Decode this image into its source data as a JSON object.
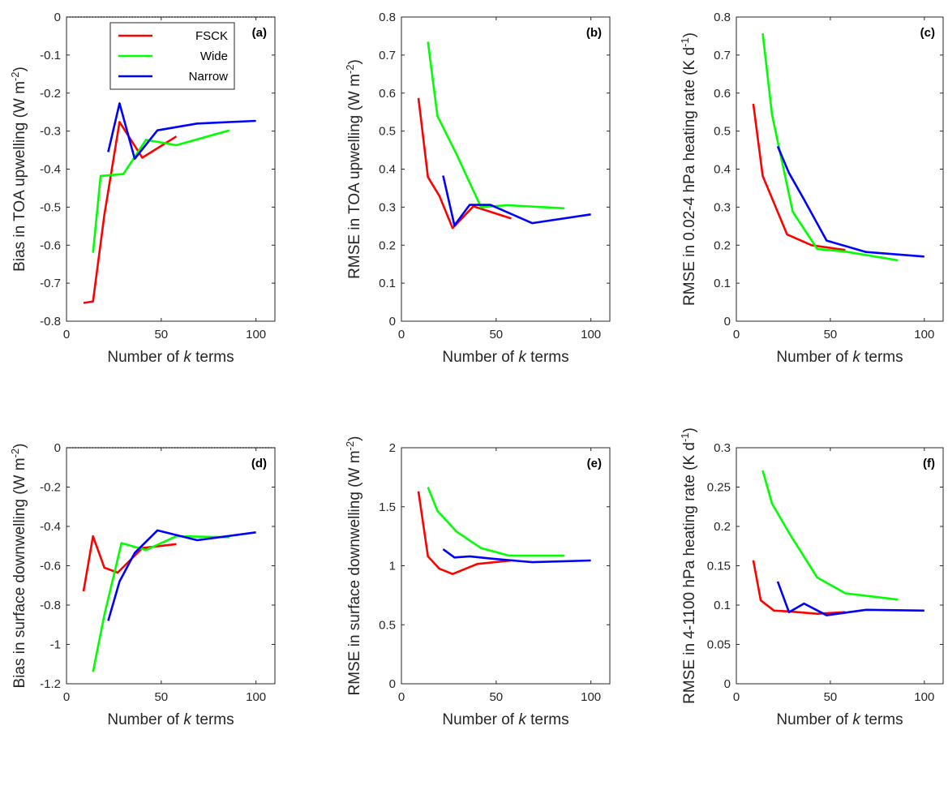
{
  "legend": {
    "entries": [
      {
        "name": "FSCK",
        "color": "#ff0000"
      },
      {
        "name": "Wide",
        "color": "#00ff00"
      },
      {
        "name": "Narrow",
        "color": "#0000ff"
      }
    ],
    "placement": "top-left of panel (a)"
  },
  "chart_data": [
    {
      "type": "line",
      "tag": "(a)",
      "xlabel": "Number of k terms",
      "ylabel_parts": [
        "Bias in TOA upwelling (W m",
        "-2",
        ")"
      ],
      "xlim": [
        0,
        110
      ],
      "ylim": [
        -0.8,
        0
      ],
      "xticks": [
        0,
        50,
        100
      ],
      "yticks": [
        -0.8,
        -0.7,
        -0.6,
        -0.5,
        -0.4,
        -0.3,
        -0.2,
        -0.1,
        0
      ],
      "yticklabels": [
        "-0.8",
        "-0.7",
        "-0.6",
        "-0.5",
        "-0.4",
        "-0.3",
        "-0.2",
        "-0.1",
        "0"
      ],
      "zero_line": true,
      "series": [
        {
          "name": "FSCK",
          "x": [
            9,
            14,
            20,
            28,
            40,
            58
          ],
          "y": [
            -0.752,
            -0.748,
            -0.52,
            -0.276,
            -0.37,
            -0.314
          ]
        },
        {
          "name": "Wide",
          "x": [
            14,
            18,
            30,
            42,
            58,
            86
          ],
          "y": [
            -0.62,
            -0.418,
            -0.413,
            -0.323,
            -0.337,
            -0.298
          ]
        },
        {
          "name": "Narrow",
          "x": [
            22,
            28,
            36,
            48,
            69,
            100
          ],
          "y": [
            -0.355,
            -0.227,
            -0.373,
            -0.298,
            -0.28,
            -0.273
          ]
        }
      ]
    },
    {
      "type": "line",
      "tag": "(b)",
      "xlabel": "Number of k terms",
      "ylabel_parts": [
        "RMSE in TOA upwelling (W m",
        "-2",
        ")"
      ],
      "xlim": [
        0,
        110
      ],
      "ylim": [
        0,
        0.8
      ],
      "xticks": [
        0,
        50,
        100
      ],
      "yticks": [
        0,
        0.1,
        0.2,
        0.3,
        0.4,
        0.5,
        0.6,
        0.7,
        0.8
      ],
      "yticklabels": [
        "0",
        "0.1",
        "0.2",
        "0.3",
        "0.4",
        "0.5",
        "0.6",
        "0.7",
        "0.8"
      ],
      "zero_line": false,
      "series": [
        {
          "name": "FSCK",
          "x": [
            9,
            14,
            20,
            27,
            38,
            58
          ],
          "y": [
            0.587,
            0.379,
            0.33,
            0.245,
            0.302,
            0.27
          ]
        },
        {
          "name": "Wide",
          "x": [
            14,
            19,
            29,
            42,
            56,
            86
          ],
          "y": [
            0.735,
            0.54,
            0.44,
            0.3,
            0.305,
            0.297
          ]
        },
        {
          "name": "Narrow",
          "x": [
            22,
            28,
            36,
            47,
            69,
            100
          ],
          "y": [
            0.383,
            0.252,
            0.306,
            0.306,
            0.258,
            0.281
          ]
        }
      ]
    },
    {
      "type": "line",
      "tag": "(c)",
      "xlabel": "Number of k terms",
      "ylabel_parts": [
        "RMSE in 0.02-4 hPa heating rate (K d",
        "-1",
        ")"
      ],
      "xlim": [
        0,
        110
      ],
      "ylim": [
        0,
        0.8
      ],
      "xticks": [
        0,
        50,
        100
      ],
      "yticks": [
        0,
        0.1,
        0.2,
        0.3,
        0.4,
        0.5,
        0.6,
        0.7,
        0.8
      ],
      "yticklabels": [
        "0",
        "0.1",
        "0.2",
        "0.3",
        "0.4",
        "0.5",
        "0.6",
        "0.7",
        "0.8"
      ],
      "zero_line": false,
      "series": [
        {
          "name": "FSCK",
          "x": [
            9,
            14,
            27,
            40,
            58
          ],
          "y": [
            0.572,
            0.382,
            0.228,
            0.2,
            0.187
          ]
        },
        {
          "name": "Wide",
          "x": [
            14,
            19,
            30,
            43,
            58,
            86
          ],
          "y": [
            0.757,
            0.543,
            0.288,
            0.19,
            0.183,
            0.16
          ]
        },
        {
          "name": "Narrow",
          "x": [
            22,
            28,
            36,
            48,
            69,
            100
          ],
          "y": [
            0.46,
            0.39,
            0.32,
            0.212,
            0.182,
            0.17
          ]
        }
      ]
    },
    {
      "type": "line",
      "tag": "(d)",
      "xlabel": "Number of k terms",
      "ylabel_parts": [
        "Bias in surface downwelling (W m",
        "-2",
        ")"
      ],
      "xlim": [
        0,
        110
      ],
      "ylim": [
        -1.2,
        0
      ],
      "xticks": [
        0,
        50,
        100
      ],
      "yticks": [
        -1.2,
        -1,
        -0.8,
        -0.6,
        -0.4,
        -0.2,
        0
      ],
      "yticklabels": [
        "-1.2",
        "-1",
        "-0.8",
        "-0.6",
        "-0.4",
        "-0.2",
        "0"
      ],
      "zero_line": true,
      "series": [
        {
          "name": "FSCK",
          "x": [
            9,
            14,
            20,
            27,
            40,
            58
          ],
          "y": [
            -0.73,
            -0.45,
            -0.61,
            -0.635,
            -0.51,
            -0.49
          ]
        },
        {
          "name": "Wide",
          "x": [
            14,
            20,
            29,
            42,
            58,
            86
          ],
          "y": [
            -1.14,
            -0.85,
            -0.485,
            -0.52,
            -0.45,
            -0.455
          ]
        },
        {
          "name": "Narrow",
          "x": [
            22,
            28,
            36,
            48,
            69,
            100
          ],
          "y": [
            -0.88,
            -0.68,
            -0.535,
            -0.42,
            -0.47,
            -0.43
          ]
        }
      ]
    },
    {
      "type": "line",
      "tag": "(e)",
      "xlabel": "Number of k terms",
      "ylabel_parts": [
        "RMSE in surface downwelling (W m",
        "-2",
        ")"
      ],
      "xlim": [
        0,
        110
      ],
      "ylim": [
        0,
        2
      ],
      "xticks": [
        0,
        50,
        100
      ],
      "yticks": [
        0,
        0.5,
        1,
        1.5,
        2
      ],
      "yticklabels": [
        "0",
        "0.5",
        "1",
        "1.5",
        "2"
      ],
      "zero_line": false,
      "series": [
        {
          "name": "FSCK",
          "x": [
            9,
            14,
            20,
            27,
            40,
            58
          ],
          "y": [
            1.63,
            1.08,
            0.975,
            0.93,
            1.015,
            1.045
          ]
        },
        {
          "name": "Wide",
          "x": [
            14,
            19,
            29,
            42,
            57,
            86
          ],
          "y": [
            1.665,
            1.465,
            1.29,
            1.15,
            1.085,
            1.085
          ]
        },
        {
          "name": "Narrow",
          "x": [
            22,
            28,
            36,
            48,
            69,
            100
          ],
          "y": [
            1.14,
            1.07,
            1.08,
            1.06,
            1.03,
            1.045
          ]
        }
      ]
    },
    {
      "type": "line",
      "tag": "(f)",
      "xlabel": "Number of k terms",
      "ylabel_parts": [
        "RMSE in 4-1100 hPa heating rate (K d",
        "-1",
        ")"
      ],
      "xlim": [
        0,
        110
      ],
      "ylim": [
        0,
        0.3
      ],
      "xticks": [
        0,
        50,
        100
      ],
      "yticks": [
        0,
        0.05,
        0.1,
        0.15,
        0.2,
        0.25,
        0.3
      ],
      "yticklabels": [
        "0",
        "0.05",
        "0.1",
        "0.15",
        "0.2",
        "0.25",
        "0.3"
      ],
      "zero_line": false,
      "series": [
        {
          "name": "FSCK",
          "x": [
            9,
            13,
            20,
            28,
            43,
            58
          ],
          "y": [
            0.157,
            0.106,
            0.093,
            0.092,
            0.089,
            0.091
          ]
        },
        {
          "name": "Wide",
          "x": [
            14,
            19,
            29,
            43,
            58,
            86
          ],
          "y": [
            0.271,
            0.229,
            0.188,
            0.135,
            0.115,
            0.107
          ]
        },
        {
          "name": "Narrow",
          "x": [
            22,
            28,
            36,
            48,
            69,
            100
          ],
          "y": [
            0.13,
            0.091,
            0.102,
            0.087,
            0.094,
            0.093
          ]
        }
      ]
    }
  ]
}
